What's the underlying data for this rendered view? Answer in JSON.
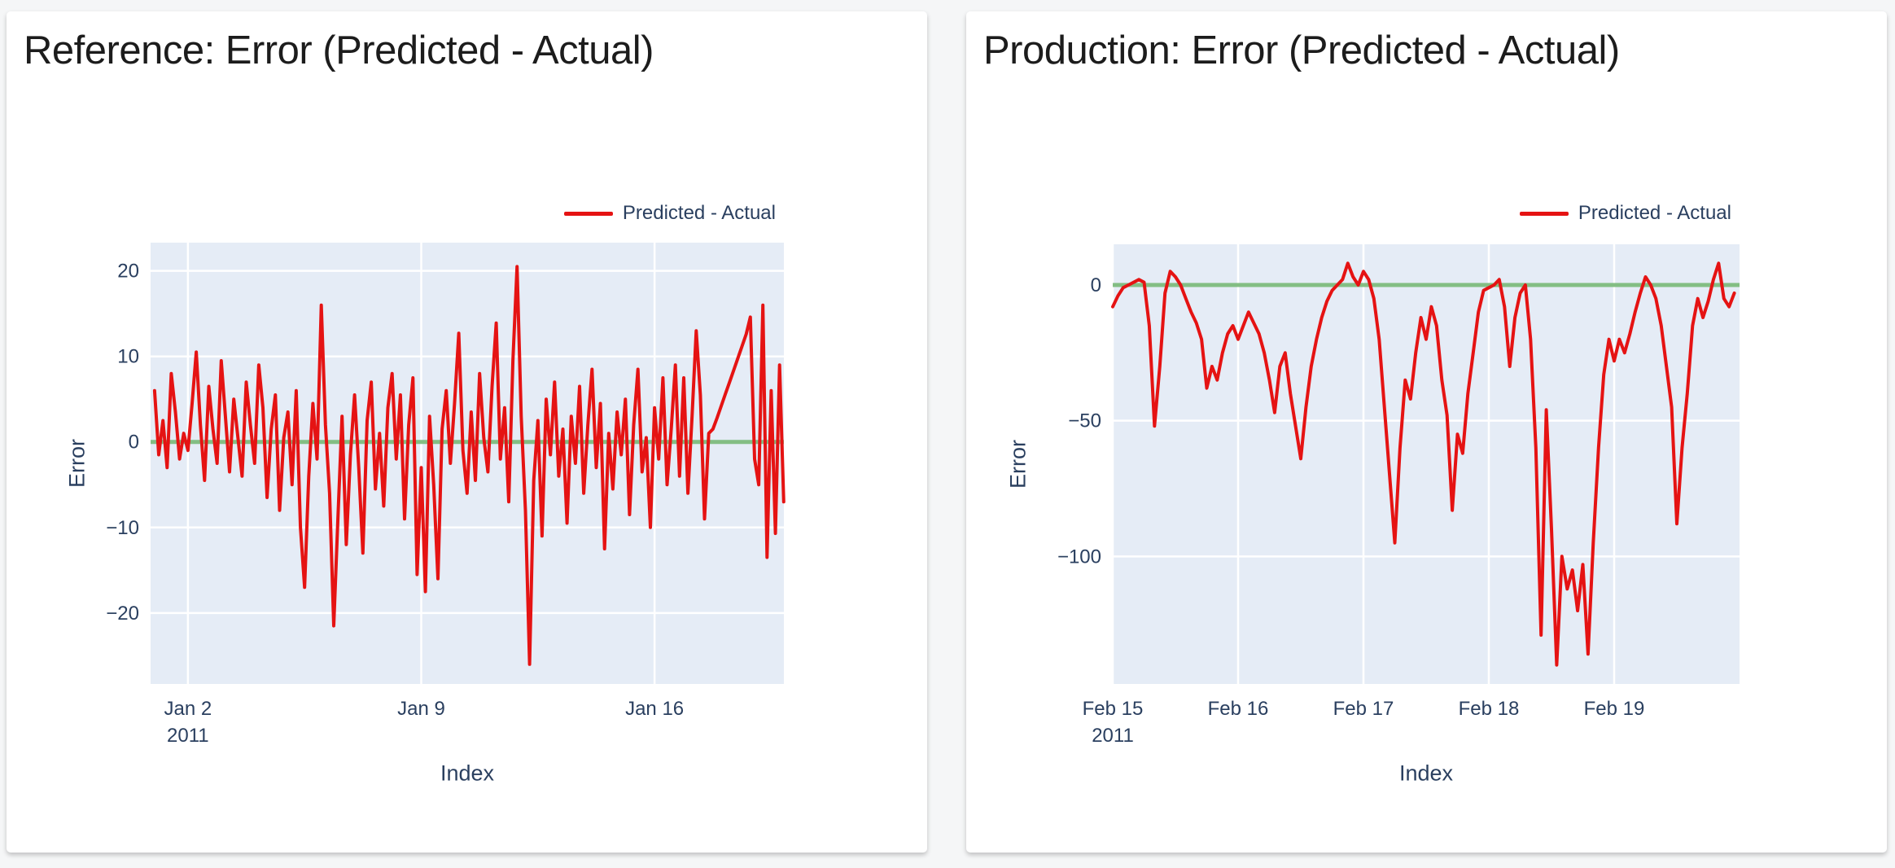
{
  "page": {
    "background": "#f5f6f7"
  },
  "cards": [
    {
      "title": "Reference: Error (Predicted - Actual)"
    },
    {
      "title": "Production: Error (Predicted - Actual)"
    }
  ],
  "chart_data": [
    {
      "type": "line",
      "title": "Reference: Error (Predicted - Actual)",
      "xlabel": "Index",
      "ylabel": "Error",
      "legend": [
        {
          "label": "Predicted - Actual",
          "color": "#e51313"
        }
      ],
      "plot_bg": "#e5ecf6",
      "grid_color": "#ffffff",
      "zero_line": {
        "value": 0,
        "color": "#77b877"
      },
      "x_axis": {
        "range_days": [
          -0.12,
          18.88
        ],
        "ticks": [
          {
            "d": 1,
            "label": "Jan 2",
            "sub": "2011"
          },
          {
            "d": 8,
            "label": "Jan 9"
          },
          {
            "d": 15,
            "label": "Jan 16"
          }
        ]
      },
      "y_axis": {
        "range": [
          -28.3,
          23.3
        ],
        "ticks": [
          {
            "v": 20,
            "label": "20"
          },
          {
            "v": 10,
            "label": "10"
          },
          {
            "v": 0,
            "label": "0"
          },
          {
            "v": -10,
            "label": "−10"
          },
          {
            "v": -20,
            "label": "−20"
          }
        ]
      },
      "series": [
        {
          "name": "Predicted - Actual",
          "color": "#e51313",
          "x_start_day": 0,
          "x_step_days": 0.125,
          "values": [
            6.0,
            -1.5,
            2.5,
            -3.0,
            8.0,
            3.5,
            -2.0,
            1.0,
            -1.0,
            4.5,
            10.5,
            2.0,
            -4.5,
            6.5,
            1.5,
            -2.5,
            9.5,
            3.0,
            -3.5,
            5.0,
            0.5,
            -4.0,
            7.0,
            2.0,
            -2.5,
            9.0,
            4.0,
            -6.5,
            1.5,
            5.5,
            -8.0,
            0.5,
            3.5,
            -5.0,
            6.0,
            -10.0,
            -17.0,
            -4.0,
            4.5,
            -2.0,
            16.0,
            2.0,
            -6.0,
            -21.5,
            -9.0,
            3.0,
            -12.0,
            -1.5,
            5.5,
            -3.0,
            -13.0,
            2.5,
            7.0,
            -5.5,
            1.0,
            -7.5,
            4.0,
            8.0,
            -2.0,
            5.5,
            -9.0,
            2.0,
            7.5,
            -15.5,
            -3.0,
            -17.5,
            3.0,
            -5.0,
            -16.0,
            1.5,
            6.0,
            -2.5,
            4.5,
            12.7,
            -1.0,
            -6.0,
            3.5,
            -4.5,
            8.0,
            0.5,
            -3.5,
            6.5,
            13.9,
            -2.0,
            4.0,
            -7.0,
            9.5,
            20.5,
            3.0,
            -8.0,
            -26.0,
            -4.5,
            2.5,
            -11.0,
            5.0,
            -1.5,
            7.0,
            -4.0,
            1.5,
            -9.5,
            3.0,
            -2.5,
            6.5,
            -6.0,
            2.0,
            8.5,
            -3.0,
            4.5,
            -12.5,
            1.0,
            -5.5,
            3.5,
            -1.5,
            5.0,
            -8.5,
            2.0,
            8.5,
            -3.5,
            0.5,
            -10.0,
            4.0,
            -2.0,
            7.5,
            -5.0,
            1.5,
            9.0,
            -4.0,
            7.5,
            -6.0,
            3.0,
            13.0,
            5.5,
            -9.0,
            1.0,
            1.5,
            2.8,
            4.2,
            5.6,
            7.0,
            8.4,
            9.8,
            11.2,
            12.6,
            14.6,
            -2.0,
            -5.0,
            16.0,
            -13.5,
            6.0,
            -10.7,
            9.0,
            -7.0
          ]
        }
      ]
    },
    {
      "type": "line",
      "title": "Production: Error (Predicted - Actual)",
      "xlabel": "Index",
      "ylabel": "Error",
      "legend": [
        {
          "label": "Predicted - Actual",
          "color": "#e51313"
        }
      ],
      "plot_bg": "#e5ecf6",
      "grid_color": "#ffffff",
      "zero_line": {
        "value": 0,
        "color": "#77b877"
      },
      "x_axis": {
        "range_days": [
          0,
          5
        ],
        "ticks": [
          {
            "d": 0,
            "label": "Feb 15",
            "sub": "2011"
          },
          {
            "d": 1,
            "label": "Feb 16"
          },
          {
            "d": 2,
            "label": "Feb 17"
          },
          {
            "d": 3,
            "label": "Feb 18"
          },
          {
            "d": 4,
            "label": "Feb 19"
          }
        ]
      },
      "y_axis": {
        "range": [
          -147,
          15
        ],
        "ticks": [
          {
            "v": 0,
            "label": "0"
          },
          {
            "v": -50,
            "label": "−50"
          },
          {
            "v": -100,
            "label": "−100"
          }
        ]
      },
      "series": [
        {
          "name": "Predicted - Actual",
          "color": "#e51313",
          "x_start_day": 0,
          "x_step_days": 0.0416667,
          "values": [
            -8,
            -4,
            -1,
            0,
            1,
            2,
            1,
            -15,
            -52,
            -30,
            -3,
            5,
            3,
            0,
            -5,
            -10,
            -14,
            -20,
            -38,
            -30,
            -35,
            -25,
            -18,
            -15,
            -20,
            -15,
            -10,
            -14,
            -18,
            -25,
            -35,
            -47,
            -30,
            -25,
            -40,
            -52,
            -64,
            -45,
            -30,
            -20,
            -12,
            -6,
            -2,
            0,
            2,
            8,
            3,
            0,
            5,
            2,
            -5,
            -20,
            -45,
            -70,
            -95,
            -60,
            -35,
            -42,
            -25,
            -12,
            -20,
            -8,
            -15,
            -35,
            -48,
            -83,
            -55,
            -62,
            -40,
            -25,
            -10,
            -2,
            -1,
            0,
            2,
            -8,
            -30,
            -12,
            -3,
            0,
            -20,
            -60,
            -129,
            -46,
            -90,
            -140,
            -100,
            -112,
            -105,
            -120,
            -103,
            -136,
            -95,
            -60,
            -33,
            -20,
            -28,
            -20,
            -25,
            -18,
            -10,
            -3,
            3,
            0,
            -5,
            -15,
            -30,
            -45,
            -88,
            -60,
            -40,
            -15,
            -5,
            -12,
            -6,
            2,
            8,
            -5,
            -8,
            -3
          ]
        }
      ]
    }
  ]
}
